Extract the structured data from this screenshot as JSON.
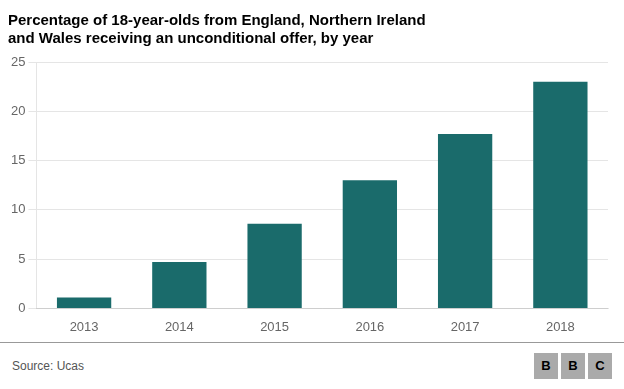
{
  "chart_data": {
    "type": "bar",
    "title": "Percentage of 18-year-olds from England, Northern Ireland\nand Wales receiving an unconditional offer, by year",
    "categories": [
      "2013",
      "2014",
      "2015",
      "2016",
      "2017",
      "2018"
    ],
    "values": [
      1.1,
      4.7,
      8.6,
      13.0,
      17.7,
      23.0
    ],
    "color": "#1a6b6b",
    "ylim": [
      0,
      25
    ],
    "yticks": [
      0,
      5,
      10,
      15,
      20,
      25
    ],
    "grid": true,
    "annotations": [
      "Source: Ucas",
      "BBC"
    ]
  }
}
